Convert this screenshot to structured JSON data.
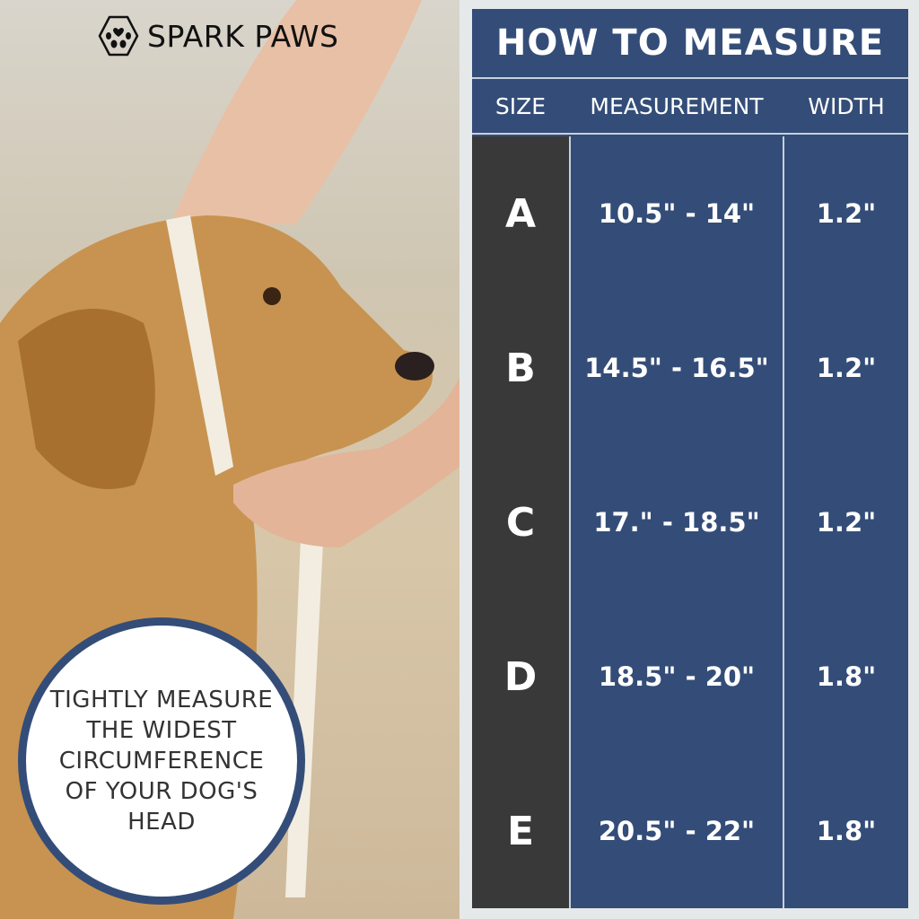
{
  "brand": {
    "name": "SPARK PAWS",
    "icon": "paw-hexagon-icon"
  },
  "callout": {
    "text": "TIGHTLY MEASURE THE WIDEST CIRCUMFERENCE OF YOUR DOG'S HEAD"
  },
  "table": {
    "title": "HOW TO MEASURE",
    "headers": [
      "SIZE",
      "MEASUREMENT",
      "WIDTH"
    ],
    "rows": [
      {
        "size": "A",
        "measurement": "10.5\" - 14\"",
        "width": "1.2\""
      },
      {
        "size": "B",
        "measurement": "14.5\" - 16.5\"",
        "width": "1.2\""
      },
      {
        "size": "C",
        "measurement": "17.\" - 18.5\"",
        "width": "1.2\""
      },
      {
        "size": "D",
        "measurement": "18.5\" - 20\"",
        "width": "1.8\""
      },
      {
        "size": "E",
        "measurement": "20.5\" - 22\"",
        "width": "1.8\""
      }
    ]
  },
  "colors": {
    "accent": "#344d78",
    "size_column": "#393939",
    "background": "#e6e9ea"
  }
}
